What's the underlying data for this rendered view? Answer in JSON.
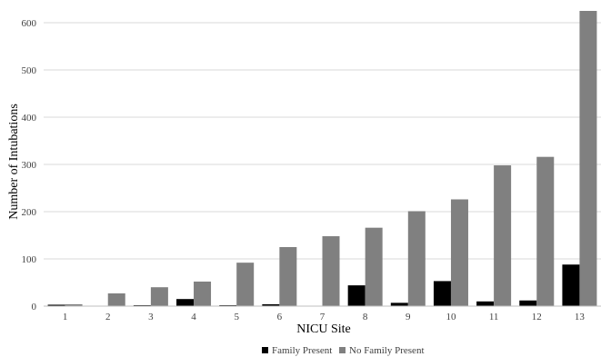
{
  "chart_data": {
    "type": "bar",
    "xlabel": "NICU Site",
    "ylabel": "Number of Intubations",
    "ylim": [
      0,
      625
    ],
    "yticks": [
      0,
      100,
      200,
      300,
      400,
      500,
      600
    ],
    "grid": true,
    "legend_position": "bottom-center",
    "categories": [
      "1",
      "2",
      "3",
      "4",
      "5",
      "6",
      "7",
      "8",
      "9",
      "10",
      "11",
      "12",
      "13"
    ],
    "series": [
      {
        "name": "Family Present",
        "color": "#000000",
        "values": [
          3,
          0,
          2,
          15,
          2,
          4,
          0,
          44,
          7,
          53,
          10,
          12,
          88
        ]
      },
      {
        "name": "No Family Present",
        "color": "#808080",
        "values": [
          4,
          27,
          40,
          52,
          92,
          125,
          148,
          166,
          201,
          226,
          298,
          316,
          625
        ]
      }
    ]
  }
}
